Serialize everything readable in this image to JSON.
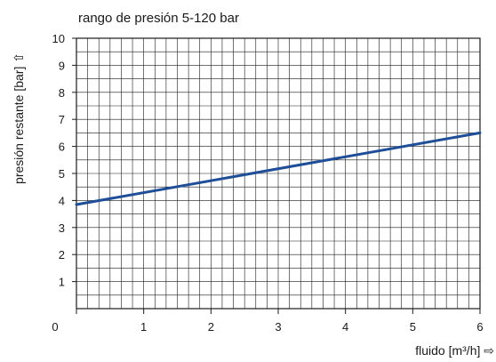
{
  "chart_data": {
    "type": "line",
    "title": "rango de presión 5-120 bar",
    "xlabel": "fluido [m³/h] ⇨",
    "ylabel": "presión restante [bar] ⇧",
    "xlim": [
      0,
      6
    ],
    "ylim": [
      0,
      10
    ],
    "x_ticks": [
      "0",
      "1",
      "2",
      "3",
      "4",
      "5",
      "6"
    ],
    "y_ticks": [
      "1",
      "2",
      "3",
      "4",
      "5",
      "6",
      "7",
      "8",
      "9",
      "10"
    ],
    "grid": true,
    "series": [
      {
        "x": [
          0,
          6
        ],
        "y": [
          3.85,
          6.5
        ],
        "color": "#1f4e99"
      }
    ]
  }
}
